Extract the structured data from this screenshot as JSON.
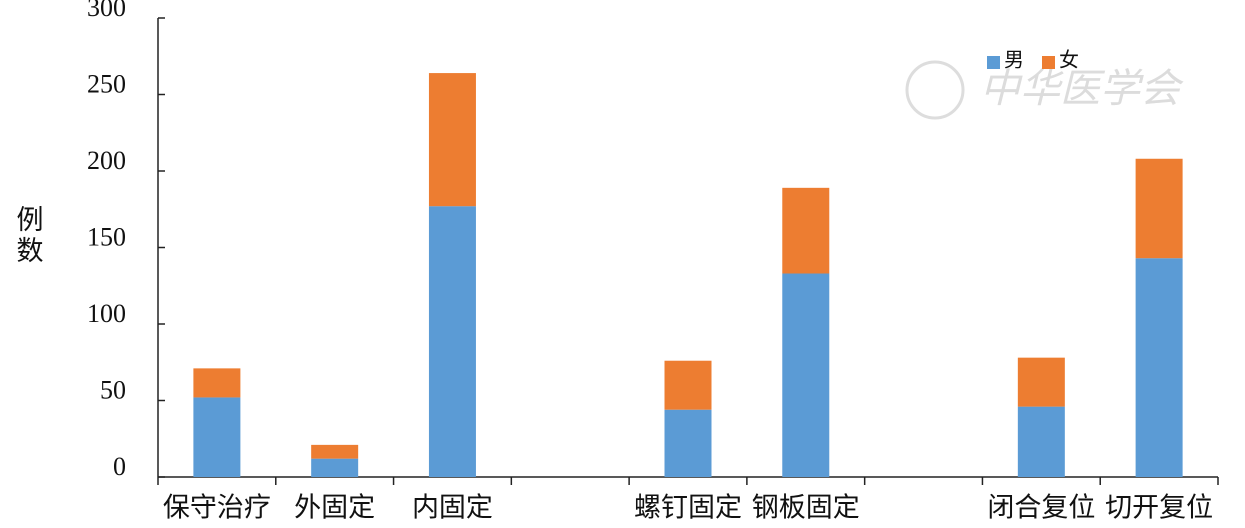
{
  "chart_data": {
    "type": "stacked_bar",
    "y_label": "例数",
    "watermark": "中华医学会",
    "categories": [
      "保守治疗",
      "外固定",
      "内固定",
      null,
      "螺钉固定",
      "钢板固定",
      null,
      "闭合复位",
      "切开复位"
    ],
    "series": [
      {
        "name": "男",
        "color": "#5b9bd5",
        "values": [
          52,
          12,
          177,
          null,
          44,
          133,
          null,
          46,
          143
        ]
      },
      {
        "name": "女",
        "color": "#ed7d31",
        "values": [
          19,
          9,
          87,
          null,
          32,
          56,
          null,
          32,
          65
        ]
      }
    ],
    "ylim": [
      0,
      300
    ],
    "yticks": [
      0,
      50,
      100,
      150,
      200,
      250,
      300
    ],
    "legend": "top-right"
  }
}
